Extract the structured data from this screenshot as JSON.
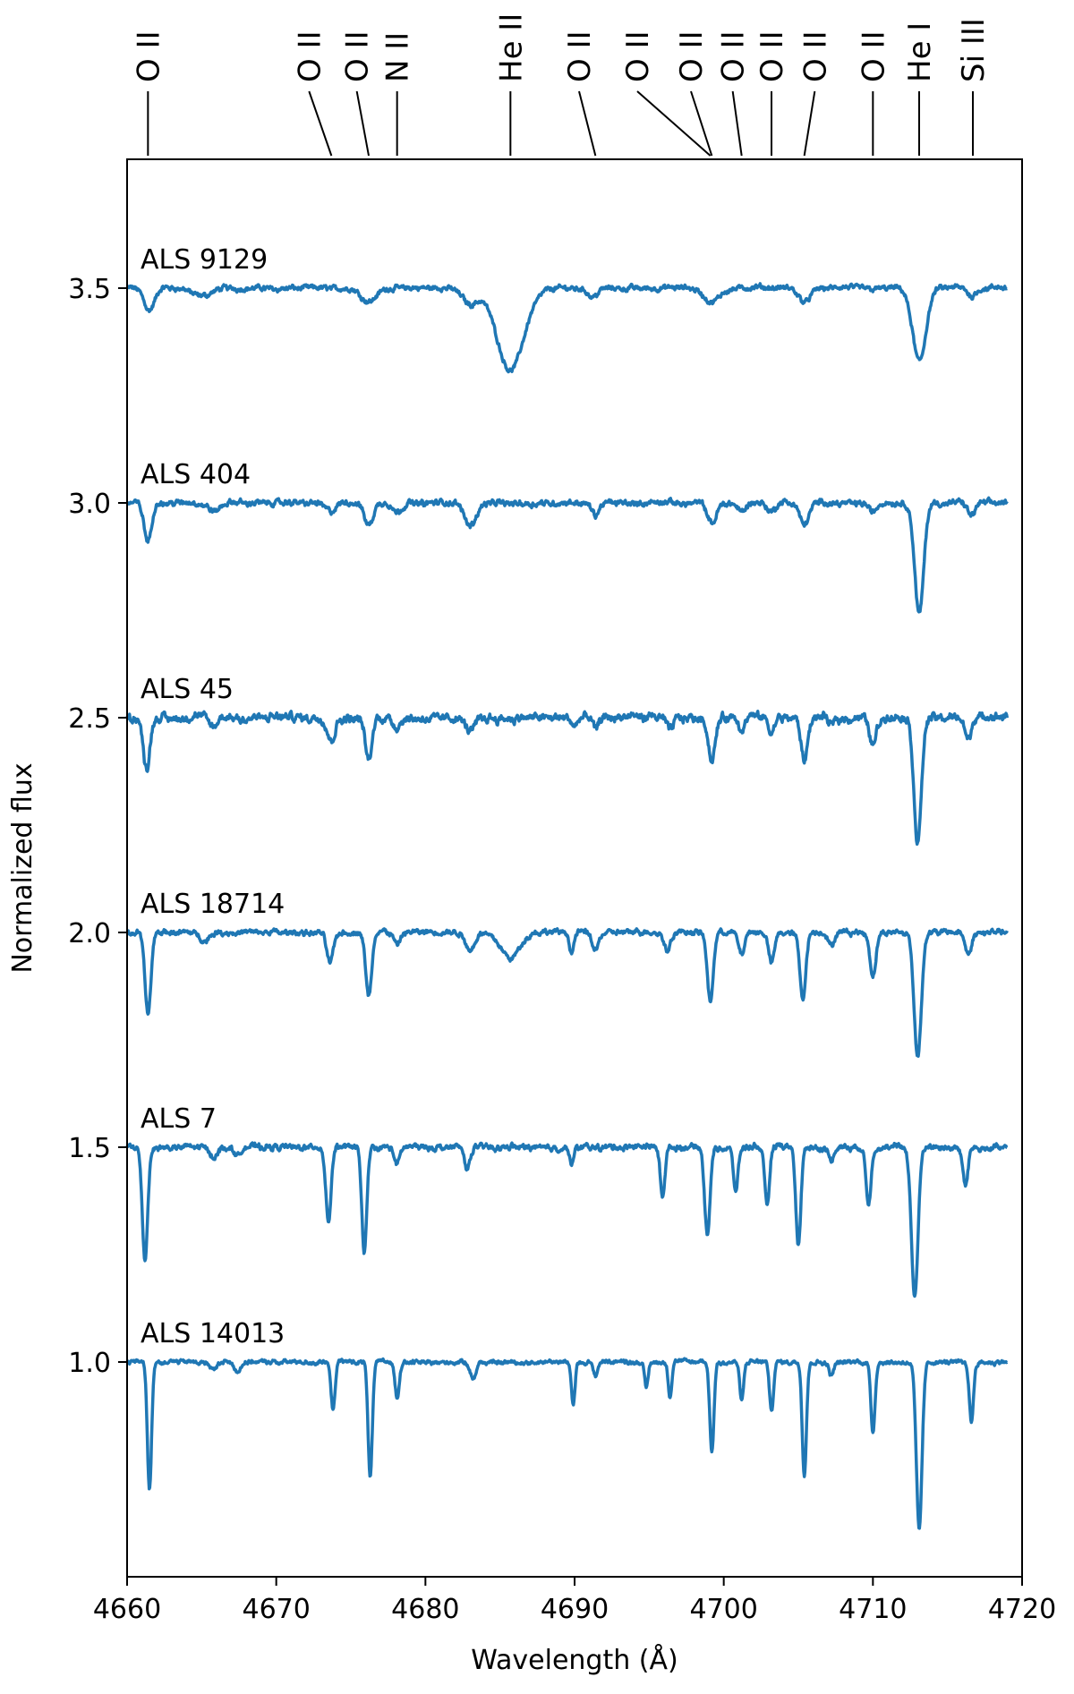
{
  "chart_data": {
    "type": "line",
    "title": "",
    "xlabel": "Wavelength (Å)",
    "ylabel": "Normalized flux",
    "xlim": [
      4660,
      4720
    ],
    "ylim": [
      0.5,
      3.8
    ],
    "xticks": [
      4660,
      4670,
      4680,
      4690,
      4700,
      4710,
      4720
    ],
    "yticks": [
      1.0,
      1.5,
      2.0,
      2.5,
      3.0,
      3.5
    ],
    "xtick_labels": [
      "4660",
      "4670",
      "4680",
      "4690",
      "4700",
      "4710",
      "4720"
    ],
    "ytick_labels": [
      "1.0",
      "1.5",
      "2.0",
      "2.5",
      "3.0",
      "3.5"
    ],
    "line_color": "#1f77b4",
    "grid": false,
    "line_ids": [
      {
        "label": "O II",
        "top_x": 4661.4,
        "bottom_x": 4661.4
      },
      {
        "label": "O II",
        "top_x": 4672.2,
        "bottom_x": 4673.7
      },
      {
        "label": "O II",
        "top_x": 4675.4,
        "bottom_x": 4676.2
      },
      {
        "label": "N II",
        "top_x": 4678.1,
        "bottom_x": 4678.1
      },
      {
        "label": "He II",
        "top_x": 4685.7,
        "bottom_x": 4685.7
      },
      {
        "label": "O II",
        "top_x": 4690.3,
        "bottom_x": 4691.4
      },
      {
        "label": "O II",
        "top_x": 4694.2,
        "bottom_x": 4699.1
      },
      {
        "label": "O II",
        "top_x": 4697.8,
        "bottom_x": 4699.2
      },
      {
        "label": "O II",
        "top_x": 4700.6,
        "bottom_x": 4701.2
      },
      {
        "label": "O II",
        "top_x": 4703.2,
        "bottom_x": 4703.2
      },
      {
        "label": "O II",
        "top_x": 4706.1,
        "bottom_x": 4705.4
      },
      {
        "label": "O II",
        "top_x": 4710.0,
        "bottom_x": 4710.0
      },
      {
        "label": "He I",
        "top_x": 4713.1,
        "bottom_x": 4713.1
      },
      {
        "label": "Si III",
        "top_x": 4716.7,
        "bottom_x": 4716.7
      }
    ],
    "series": [
      {
        "name": "ALS 9129",
        "offset": 3.5,
        "noise": 0.009,
        "lines": [
          [
            4661.5,
            0.05,
            0.35
          ],
          [
            4665.0,
            0.02,
            0.6
          ],
          [
            4676.2,
            0.03,
            0.5
          ],
          [
            4683.0,
            0.035,
            0.5
          ],
          [
            4685.7,
            0.19,
            0.9
          ],
          [
            4691.2,
            0.02,
            0.3
          ],
          [
            4699.2,
            0.035,
            0.5
          ],
          [
            4705.4,
            0.03,
            0.4
          ],
          [
            4713.1,
            0.17,
            0.45
          ],
          [
            4716.6,
            0.02,
            0.25
          ]
        ]
      },
      {
        "name": "ALS 404",
        "offset": 3.0,
        "noise": 0.01,
        "lines": [
          [
            4661.4,
            0.09,
            0.25
          ],
          [
            4665.8,
            0.02,
            0.4
          ],
          [
            4673.7,
            0.02,
            0.35
          ],
          [
            4676.2,
            0.05,
            0.3
          ],
          [
            4678.1,
            0.02,
            0.3
          ],
          [
            4683.0,
            0.05,
            0.4
          ],
          [
            4691.4,
            0.03,
            0.25
          ],
          [
            4699.2,
            0.05,
            0.3
          ],
          [
            4701.2,
            0.02,
            0.25
          ],
          [
            4703.2,
            0.02,
            0.25
          ],
          [
            4705.4,
            0.05,
            0.3
          ],
          [
            4710.0,
            0.02,
            0.25
          ],
          [
            4713.1,
            0.26,
            0.3
          ],
          [
            4716.6,
            0.03,
            0.25
          ]
        ]
      },
      {
        "name": "ALS 45",
        "offset": 2.5,
        "noise": 0.014,
        "lines": [
          [
            4661.3,
            0.12,
            0.22
          ],
          [
            4665.8,
            0.02,
            0.3
          ],
          [
            4673.7,
            0.05,
            0.25
          ],
          [
            4676.2,
            0.1,
            0.22
          ],
          [
            4678.1,
            0.02,
            0.2
          ],
          [
            4683.0,
            0.03,
            0.3
          ],
          [
            4690.0,
            0.02,
            0.2
          ],
          [
            4691.4,
            0.03,
            0.2
          ],
          [
            4696.4,
            0.03,
            0.2
          ],
          [
            4699.2,
            0.1,
            0.22
          ],
          [
            4701.2,
            0.03,
            0.2
          ],
          [
            4703.2,
            0.04,
            0.2
          ],
          [
            4705.4,
            0.1,
            0.22
          ],
          [
            4707.2,
            0.02,
            0.2
          ],
          [
            4710.0,
            0.06,
            0.22
          ],
          [
            4713.0,
            0.29,
            0.25
          ],
          [
            4716.4,
            0.05,
            0.2
          ]
        ]
      },
      {
        "name": "ALS 18714",
        "offset": 2.0,
        "noise": 0.009,
        "lines": [
          [
            4661.4,
            0.19,
            0.2
          ],
          [
            4665.2,
            0.02,
            0.3
          ],
          [
            4673.6,
            0.07,
            0.22
          ],
          [
            4676.2,
            0.15,
            0.2
          ],
          [
            4678.1,
            0.03,
            0.2
          ],
          [
            4683.0,
            0.04,
            0.3
          ],
          [
            4685.7,
            0.06,
            0.6
          ],
          [
            4689.8,
            0.05,
            0.15
          ],
          [
            4691.4,
            0.04,
            0.2
          ],
          [
            4696.2,
            0.04,
            0.2
          ],
          [
            4699.1,
            0.16,
            0.2
          ],
          [
            4701.2,
            0.05,
            0.2
          ],
          [
            4703.2,
            0.07,
            0.2
          ],
          [
            4705.3,
            0.15,
            0.2
          ],
          [
            4707.2,
            0.03,
            0.2
          ],
          [
            4710.0,
            0.1,
            0.2
          ],
          [
            4713.0,
            0.29,
            0.24
          ],
          [
            4716.4,
            0.05,
            0.2
          ]
        ]
      },
      {
        "name": "ALS 7",
        "offset": 1.5,
        "noise": 0.01,
        "lines": [
          [
            4661.2,
            0.26,
            0.18
          ],
          [
            4665.8,
            0.02,
            0.25
          ],
          [
            4667.4,
            0.02,
            0.2
          ],
          [
            4673.5,
            0.17,
            0.18
          ],
          [
            4675.9,
            0.24,
            0.17
          ],
          [
            4678.1,
            0.04,
            0.18
          ],
          [
            4682.8,
            0.05,
            0.18
          ],
          [
            4689.8,
            0.04,
            0.15
          ],
          [
            4695.9,
            0.11,
            0.16
          ],
          [
            4698.9,
            0.2,
            0.18
          ],
          [
            4700.8,
            0.1,
            0.16
          ],
          [
            4702.9,
            0.14,
            0.16
          ],
          [
            4705.0,
            0.23,
            0.17
          ],
          [
            4707.2,
            0.03,
            0.18
          ],
          [
            4709.7,
            0.13,
            0.17
          ],
          [
            4712.8,
            0.35,
            0.22
          ],
          [
            4716.2,
            0.09,
            0.17
          ]
        ]
      },
      {
        "name": "ALS 14013",
        "offset": 1.0,
        "noise": 0.007,
        "lines": [
          [
            4661.5,
            0.3,
            0.14
          ],
          [
            4665.8,
            0.02,
            0.2
          ],
          [
            4667.4,
            0.02,
            0.2
          ],
          [
            4673.8,
            0.11,
            0.14
          ],
          [
            4676.3,
            0.27,
            0.14
          ],
          [
            4678.1,
            0.08,
            0.14
          ],
          [
            4683.2,
            0.04,
            0.2
          ],
          [
            4689.9,
            0.1,
            0.12
          ],
          [
            4691.4,
            0.03,
            0.15
          ],
          [
            4694.8,
            0.06,
            0.12
          ],
          [
            4696.4,
            0.08,
            0.12
          ],
          [
            4699.2,
            0.21,
            0.14
          ],
          [
            4701.2,
            0.09,
            0.13
          ],
          [
            4703.2,
            0.12,
            0.13
          ],
          [
            4705.4,
            0.26,
            0.14
          ],
          [
            4707.2,
            0.03,
            0.15
          ],
          [
            4710.0,
            0.16,
            0.14
          ],
          [
            4713.1,
            0.39,
            0.19
          ],
          [
            4716.6,
            0.14,
            0.14
          ]
        ]
      }
    ]
  }
}
